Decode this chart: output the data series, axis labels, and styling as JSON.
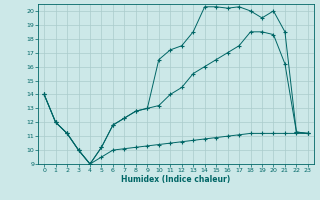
{
  "xlabel": "Humidex (Indice chaleur)",
  "bg_color": "#cce8e8",
  "line_color": "#006666",
  "grid_color": "#aacccc",
  "xlim": [
    -0.5,
    23.5
  ],
  "ylim": [
    9,
    20.5
  ],
  "yticks": [
    9,
    10,
    11,
    12,
    13,
    14,
    15,
    16,
    17,
    18,
    19,
    20
  ],
  "xticks": [
    0,
    1,
    2,
    3,
    4,
    5,
    6,
    7,
    8,
    9,
    10,
    11,
    12,
    13,
    14,
    15,
    16,
    17,
    18,
    19,
    20,
    21,
    22,
    23
  ],
  "line1_x": [
    0,
    1,
    2,
    3,
    4,
    5,
    6,
    7,
    8,
    9,
    10,
    11,
    12,
    13,
    14,
    15,
    16,
    17,
    18,
    19,
    20,
    21,
    22,
    23
  ],
  "line1_y": [
    14.0,
    12.0,
    11.2,
    10.0,
    9.0,
    9.5,
    10.0,
    10.1,
    10.2,
    10.3,
    10.4,
    10.5,
    10.6,
    10.7,
    10.8,
    10.9,
    11.0,
    11.1,
    11.2,
    11.2,
    11.2,
    11.2,
    11.2,
    11.2
  ],
  "line2_x": [
    0,
    1,
    2,
    3,
    4,
    5,
    6,
    7,
    8,
    9,
    10,
    11,
    12,
    13,
    14,
    15,
    16,
    17,
    18,
    19,
    20,
    21,
    22,
    23
  ],
  "line2_y": [
    14.0,
    12.0,
    11.2,
    10.0,
    9.0,
    10.2,
    11.8,
    12.3,
    12.8,
    13.0,
    13.2,
    14.0,
    14.5,
    15.5,
    16.0,
    16.5,
    17.0,
    17.5,
    18.5,
    18.5,
    18.3,
    16.2,
    11.3,
    11.2
  ],
  "line3_x": [
    0,
    1,
    2,
    3,
    4,
    5,
    6,
    7,
    8,
    9,
    10,
    11,
    12,
    13,
    14,
    15,
    16,
    17,
    18,
    19,
    20,
    21,
    22,
    23
  ],
  "line3_y": [
    14.0,
    12.0,
    11.2,
    10.0,
    9.0,
    10.2,
    11.8,
    12.3,
    12.8,
    13.0,
    16.5,
    17.2,
    17.5,
    18.5,
    20.3,
    20.3,
    20.2,
    20.3,
    20.0,
    19.5,
    20.0,
    18.5,
    11.3,
    11.2
  ]
}
